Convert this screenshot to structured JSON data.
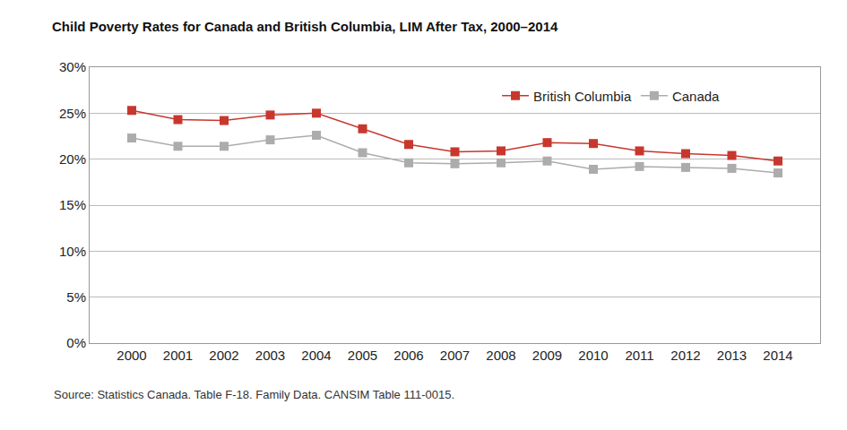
{
  "chart_data": {
    "type": "line",
    "title": "Child Poverty Rates for Canada and British Columbia, LIM After Tax, 2000–2014",
    "annotations": [
      "Source: Statistics Canada. Table F-18. Family Data. CANSIM Table 111-0015."
    ],
    "categories": [
      "2000",
      "2001",
      "2002",
      "2003",
      "2004",
      "2005",
      "2006",
      "2007",
      "2008",
      "2009",
      "2010",
      "2011",
      "2012",
      "2013",
      "2014"
    ],
    "series": [
      {
        "name": "British Columbia",
        "color": "#c8372d",
        "marker": "square",
        "values": [
          25.3,
          24.3,
          24.2,
          24.8,
          25.0,
          23.3,
          21.6,
          20.8,
          20.9,
          21.8,
          21.7,
          20.9,
          20.6,
          20.4,
          19.8
        ]
      },
      {
        "name": "Canada",
        "color": "#acacac",
        "marker": "square",
        "values": [
          22.3,
          21.4,
          21.4,
          22.1,
          22.6,
          20.7,
          19.6,
          19.5,
          19.6,
          19.8,
          18.9,
          19.2,
          19.1,
          19.0,
          18.5
        ]
      }
    ],
    "ylim": [
      0,
      30
    ],
    "yticks": [
      {
        "value": 0,
        "label": "0%"
      },
      {
        "value": 5,
        "label": "5%"
      },
      {
        "value": 10,
        "label": "10%"
      },
      {
        "value": 15,
        "label": "15%"
      },
      {
        "value": 20,
        "label": "20%"
      },
      {
        "value": 25,
        "label": "25%"
      },
      {
        "value": 30,
        "label": "30%"
      }
    ],
    "grid": true,
    "legend": "top right"
  }
}
